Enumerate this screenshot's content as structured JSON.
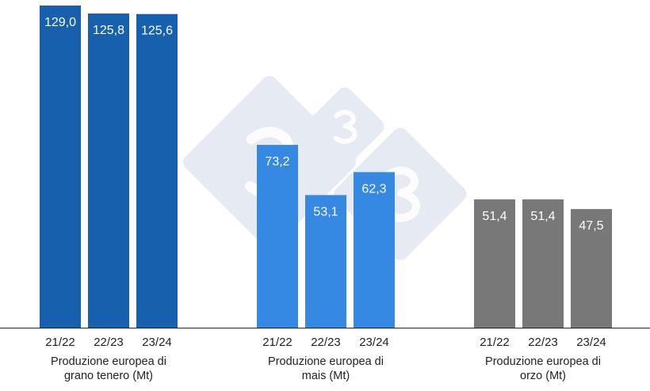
{
  "chart_data": {
    "type": "bar",
    "title": "",
    "xlabel": "",
    "ylabel": "",
    "ylim": [
      0,
      129
    ],
    "grid": false,
    "legend": "none",
    "groups": [
      {
        "label": "Produzione europea di grano tenero (Mt)",
        "label_lines": [
          "Produzione europea di",
          "grano tenero (Mt)"
        ],
        "color": "#1660ae",
        "categories": [
          "21/22",
          "22/23",
          "23/24"
        ],
        "values": [
          129.0,
          125.8,
          125.6
        ],
        "value_labels": [
          "129,0",
          "125,8",
          "125,6"
        ]
      },
      {
        "label": "Produzione europea di mais (Mt)",
        "label_lines": [
          "Produzione europea di",
          "mais (Mt)"
        ],
        "color": "#3589e3",
        "categories": [
          "21/22",
          "22/23",
          "23/24"
        ],
        "values": [
          73.2,
          53.1,
          62.3
        ],
        "value_labels": [
          "73,2",
          "53,1",
          "62,3"
        ]
      },
      {
        "label": "Produzione europea di orzo (Mt)",
        "label_lines": [
          "Produzione europea di",
          "orzo (Mt)"
        ],
        "color": "#787878",
        "categories": [
          "21/22",
          "22/23",
          "23/24"
        ],
        "values": [
          51.4,
          51.4,
          47.5
        ],
        "value_labels": [
          "51,4",
          "51,4",
          "47,5"
        ]
      }
    ],
    "watermark": {
      "text": "333",
      "color": "#e6ebf3"
    }
  }
}
